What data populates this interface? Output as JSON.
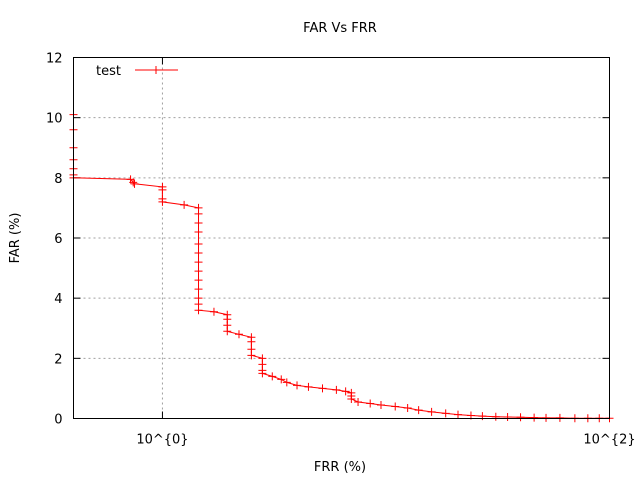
{
  "chart_data": {
    "type": "line",
    "title": "FAR Vs FRR",
    "xlabel": "FRR (%)",
    "ylabel": "FAR (%)",
    "xscale": "log",
    "xlim": [
      0.4,
      100
    ],
    "ylim": [
      0,
      12
    ],
    "grid": true,
    "legend_position": "top-left",
    "x_ticks": [
      {
        "value": 1,
        "label": "10^{0}"
      },
      {
        "value": 100,
        "label": "10^{2}"
      }
    ],
    "y_ticks": [
      0,
      2,
      4,
      6,
      8,
      10,
      12
    ],
    "series": [
      {
        "name": "test",
        "color": "#ff0000",
        "marker": "plus",
        "points": [
          [
            0.4,
            10.1
          ],
          [
            0.4,
            9.6
          ],
          [
            0.4,
            9.0
          ],
          [
            0.4,
            8.6
          ],
          [
            0.4,
            8.3
          ],
          [
            0.4,
            8.1
          ],
          [
            0.4,
            8.0
          ],
          [
            0.72,
            7.95
          ],
          [
            0.74,
            7.85
          ],
          [
            0.75,
            7.8
          ],
          [
            1.0,
            7.7
          ],
          [
            1.0,
            7.6
          ],
          [
            1.0,
            7.3
          ],
          [
            1.0,
            7.2
          ],
          [
            1.25,
            7.1
          ],
          [
            1.45,
            7.0
          ],
          [
            1.45,
            6.8
          ],
          [
            1.45,
            6.5
          ],
          [
            1.45,
            6.2
          ],
          [
            1.45,
            5.8
          ],
          [
            1.45,
            5.5
          ],
          [
            1.45,
            5.2
          ],
          [
            1.45,
            4.9
          ],
          [
            1.45,
            4.6
          ],
          [
            1.45,
            4.3
          ],
          [
            1.45,
            4.0
          ],
          [
            1.45,
            3.8
          ],
          [
            1.45,
            3.6
          ],
          [
            1.7,
            3.55
          ],
          [
            1.95,
            3.45
          ],
          [
            1.95,
            3.3
          ],
          [
            1.95,
            3.1
          ],
          [
            1.95,
            2.9
          ],
          [
            2.2,
            2.8
          ],
          [
            2.5,
            2.7
          ],
          [
            2.5,
            2.55
          ],
          [
            2.5,
            2.3
          ],
          [
            2.5,
            2.1
          ],
          [
            2.8,
            2.0
          ],
          [
            2.8,
            1.8
          ],
          [
            2.8,
            1.6
          ],
          [
            2.8,
            1.5
          ],
          [
            3.1,
            1.4
          ],
          [
            3.4,
            1.3
          ],
          [
            3.6,
            1.2
          ],
          [
            4.0,
            1.1
          ],
          [
            4.5,
            1.05
          ],
          [
            5.2,
            1.0
          ],
          [
            6.0,
            0.95
          ],
          [
            6.6,
            0.9
          ],
          [
            7.0,
            0.85
          ],
          [
            7.0,
            0.75
          ],
          [
            7.0,
            0.65
          ],
          [
            7.5,
            0.55
          ],
          [
            8.5,
            0.5
          ],
          [
            9.5,
            0.45
          ],
          [
            11.0,
            0.4
          ],
          [
            12.5,
            0.35
          ],
          [
            14.0,
            0.28
          ],
          [
            16.0,
            0.22
          ],
          [
            18.5,
            0.17
          ],
          [
            21.0,
            0.13
          ],
          [
            24.0,
            0.1
          ],
          [
            27.0,
            0.08
          ],
          [
            31.0,
            0.06
          ],
          [
            35.0,
            0.05
          ],
          [
            40.0,
            0.04
          ],
          [
            46.0,
            0.03
          ],
          [
            52.0,
            0.02
          ],
          [
            60.0,
            0.02
          ],
          [
            70.0,
            0.01
          ],
          [
            80.0,
            0.01
          ],
          [
            90.0,
            0.01
          ],
          [
            100.0,
            0.01
          ]
        ]
      }
    ]
  }
}
